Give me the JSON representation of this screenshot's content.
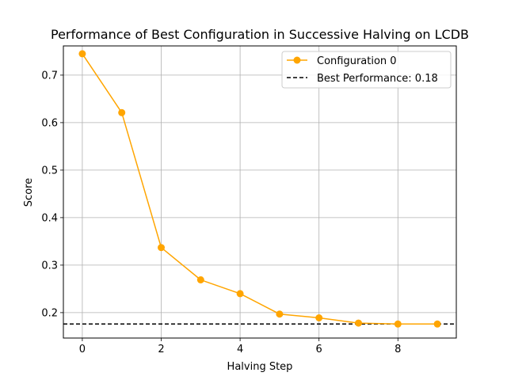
{
  "chart_data": {
    "type": "line",
    "title": "Performance of Best Configuration in Successive Halving on LCDB",
    "xlabel": "Halving Step",
    "ylabel": "Score",
    "xlim": [
      -0.48,
      9.48
    ],
    "ylim": [
      0.1465,
      0.7615
    ],
    "xticks": [
      0,
      2,
      4,
      6,
      8
    ],
    "yticks": [
      0.2,
      0.3,
      0.4,
      0.5,
      0.6,
      0.7
    ],
    "grid": true,
    "legend_position": "top-right",
    "series": [
      {
        "name": "Configuration 0",
        "color": "#ffa500",
        "marker": "circle",
        "x": [
          0,
          1,
          2,
          3,
          4,
          5,
          6,
          7,
          8,
          9
        ],
        "y": [
          0.745,
          0.621,
          0.337,
          0.269,
          0.24,
          0.197,
          0.189,
          0.178,
          0.176,
          0.176
        ]
      }
    ],
    "reference_lines": [
      {
        "name": "Best Performance: 0.18",
        "y": 0.176,
        "color": "#000000",
        "style": "dashed"
      }
    ]
  }
}
